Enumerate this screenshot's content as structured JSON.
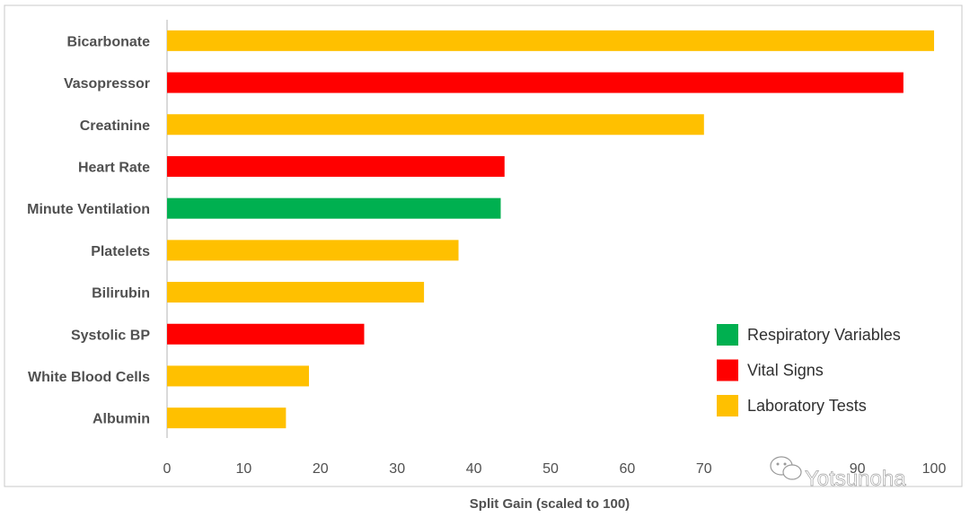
{
  "chart_data": {
    "type": "bar",
    "orientation": "horizontal",
    "categories": [
      "Bicarbonate",
      "Vasopressor",
      "Creatinine",
      "Heart Rate",
      "Minute Ventilation",
      "Platelets",
      "Bilirubin",
      "Systolic BP",
      "White Blood Cells",
      "Albumin"
    ],
    "values": [
      100,
      96,
      70,
      44,
      43.5,
      38,
      33.5,
      25.7,
      18.5,
      15.5
    ],
    "groups": [
      "Laboratory Tests",
      "Vital Signs",
      "Laboratory Tests",
      "Vital Signs",
      "Respiratory Variables",
      "Laboratory Tests",
      "Laboratory Tests",
      "Vital Signs",
      "Laboratory Tests",
      "Laboratory Tests"
    ],
    "legend": [
      {
        "name": "Respiratory Variables",
        "color": "#00b050"
      },
      {
        "name": "Vital Signs",
        "color": "#ff0000"
      },
      {
        "name": "Laboratory Tests",
        "color": "#ffc000"
      }
    ],
    "xlabel": "Split Gain (scaled to 100)",
    "xlim": [
      0,
      100
    ],
    "xticks": [
      0,
      10,
      20,
      30,
      40,
      50,
      60,
      70,
      80,
      90,
      100
    ],
    "grid": false,
    "legend_position": "bottom-right"
  },
  "watermark": {
    "text": "Yotsunoha",
    "icon": "wechat-icon"
  }
}
